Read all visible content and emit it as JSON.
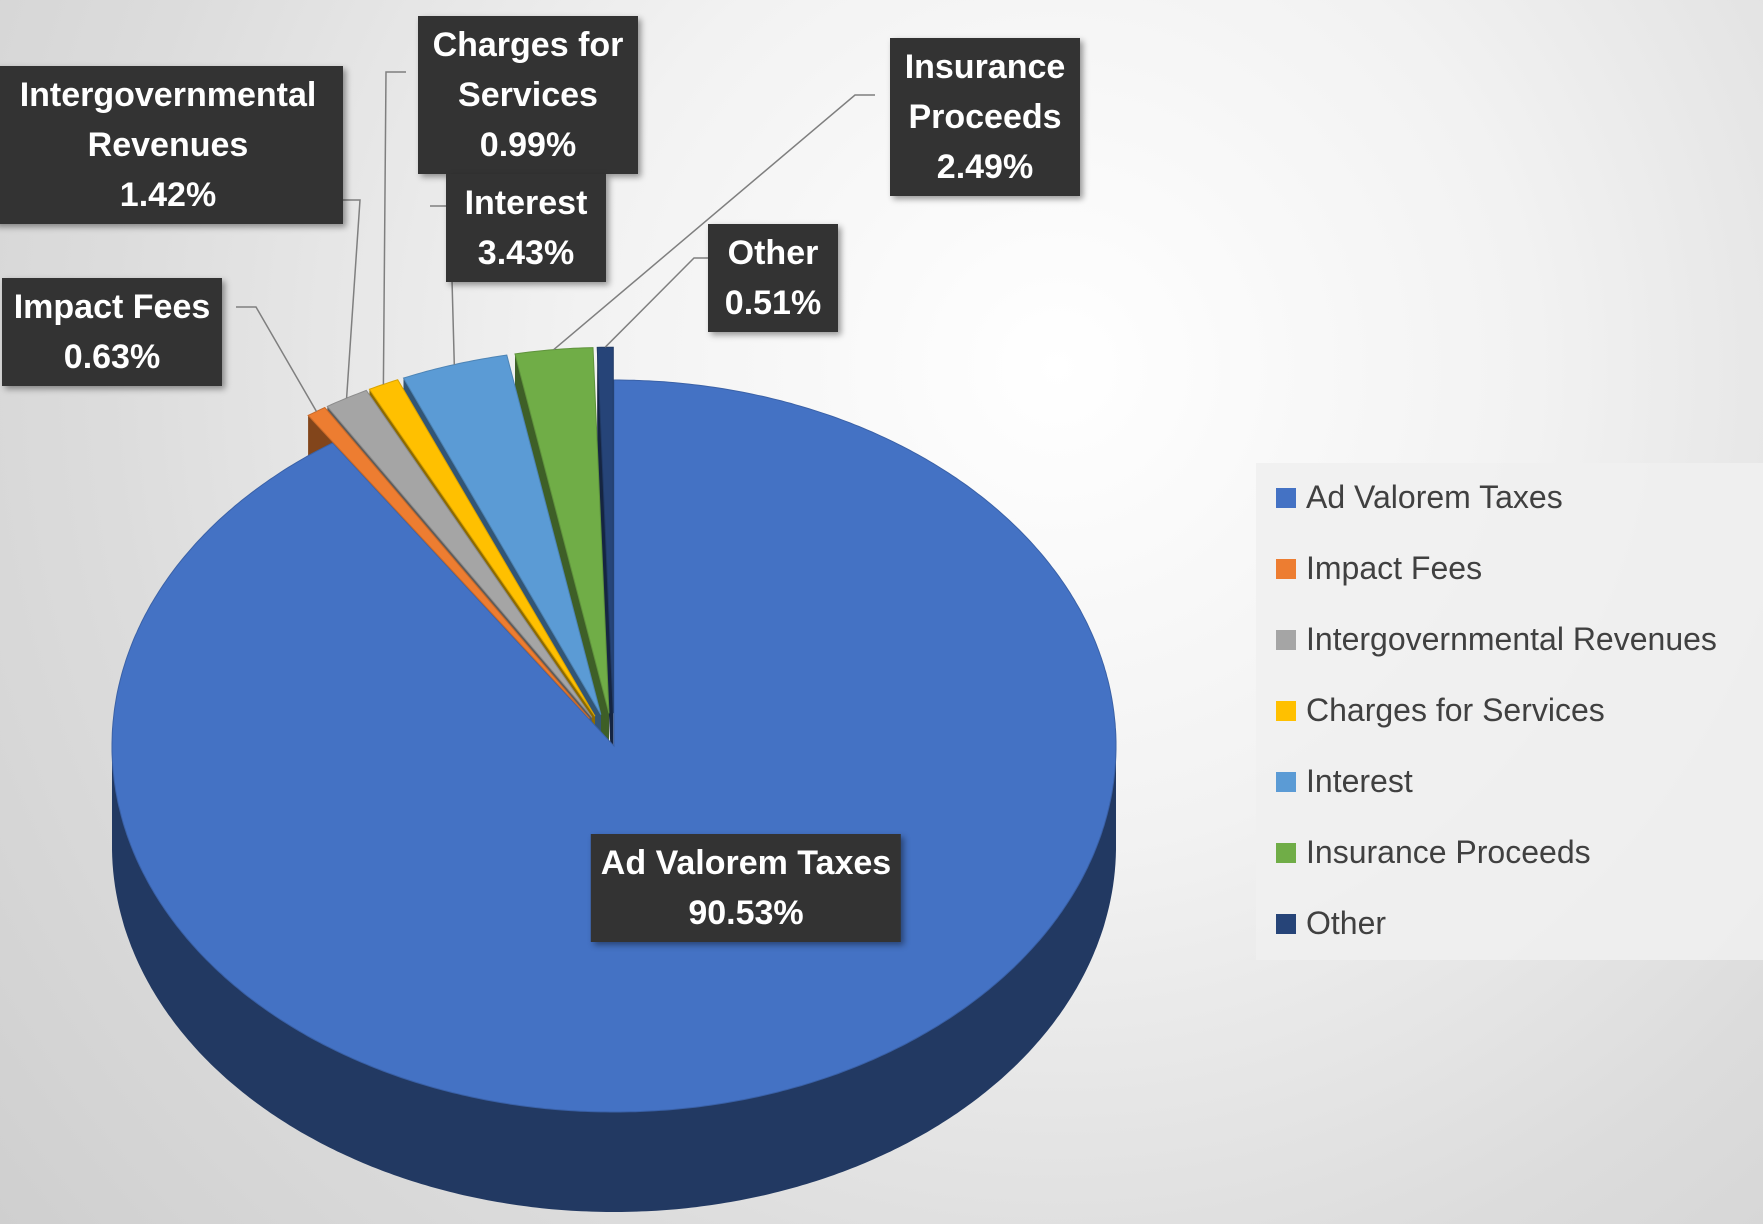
{
  "chart_data": {
    "type": "pie",
    "categories": [
      "Ad Valorem Taxes",
      "Impact Fees",
      "Intergovernmental Revenues",
      "Charges for Services",
      "Interest",
      "Insurance Proceeds",
      "Other"
    ],
    "values": [
      90.53,
      0.63,
      1.42,
      0.99,
      3.43,
      2.49,
      0.51
    ],
    "value_labels": [
      "90.53%",
      "0.63%",
      "1.42%",
      "0.99%",
      "3.43%",
      "2.49%",
      "0.51%"
    ],
    "colors": [
      "#4472c4",
      "#ed7d31",
      "#a5a5a5",
      "#ffc000",
      "#5b9bd5",
      "#70ad47",
      "#264478"
    ],
    "legend": "right"
  }
}
